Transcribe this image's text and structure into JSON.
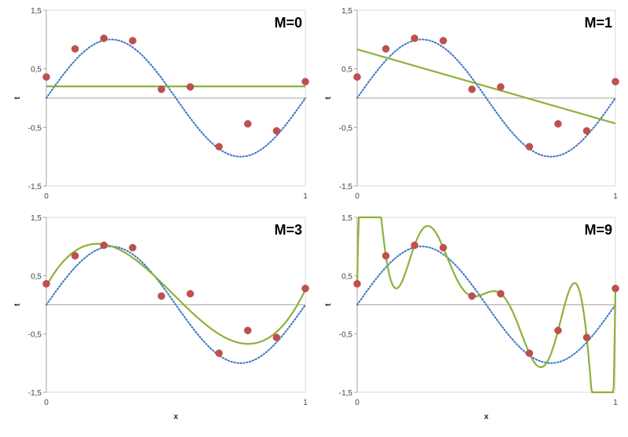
{
  "chart_data": [
    {
      "type": "scatter+line",
      "title": "M=0",
      "order": 0,
      "xlabel": "",
      "ylabel": "t",
      "xlim": [
        0,
        1
      ],
      "ylim": [
        -1.5,
        1.5
      ],
      "xticks": [
        "0",
        "1"
      ],
      "yticks": [
        "1,5",
        "0,5",
        "-0,5",
        "-1,5"
      ]
    },
    {
      "type": "scatter+line",
      "title": "M=1",
      "order": 1,
      "xlabel": "",
      "ylabel": "t",
      "xlim": [
        0,
        1
      ],
      "ylim": [
        -1.5,
        1.5
      ],
      "xticks": [
        "0",
        "1"
      ],
      "yticks": [
        "1,5",
        "0,5",
        "-0,5",
        "-1,5"
      ]
    },
    {
      "type": "scatter+line",
      "title": "M=3",
      "order": 3,
      "xlabel": "x",
      "ylabel": "t",
      "xlim": [
        0,
        1
      ],
      "ylim": [
        -1.5,
        1.5
      ],
      "xticks": [
        "0",
        "1"
      ],
      "yticks": [
        "1,5",
        "0,5",
        "-0,5",
        "-1,5"
      ]
    },
    {
      "type": "scatter+line",
      "title": "M=9",
      "order": 9,
      "xlabel": "x",
      "ylabel": "t",
      "xlim": [
        0,
        1
      ],
      "ylim": [
        -1.5,
        1.5
      ],
      "xticks": [
        "0",
        "1"
      ],
      "yticks": [
        "1,5",
        "0,5",
        "-0,5",
        "-1,5"
      ]
    }
  ],
  "shared": {
    "points_x": [
      0,
      0.1111,
      0.2222,
      0.3333,
      0.4444,
      0.5556,
      0.6667,
      0.7778,
      0.8889,
      1
    ],
    "points_t": [
      0.36,
      0.84,
      1.02,
      0.98,
      0.15,
      0.19,
      -0.83,
      -0.44,
      -0.56,
      0.28
    ],
    "true_function": "sin(2*pi*x)",
    "colors": {
      "points": "#c0504d",
      "fit": "#8db13b",
      "truth": "#3a75c4",
      "axis": "#a6a6a6"
    }
  }
}
